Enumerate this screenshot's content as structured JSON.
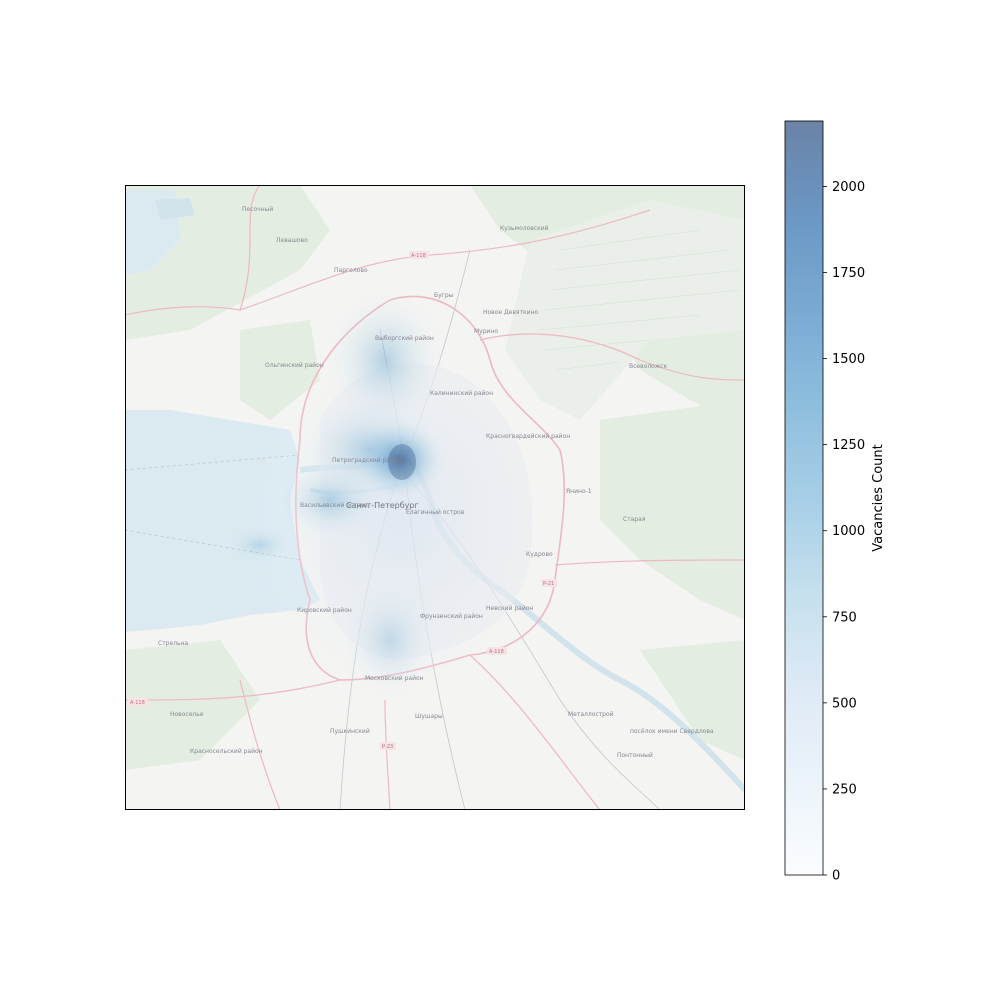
{
  "map": {
    "labels": {
      "city": "Санкт-Петербург",
      "pesochny": "Песочный",
      "levashovo": "Левашово",
      "pargolovo": "Парголово",
      "bugry": "Бугры",
      "kuzmolovsky": "Кузьмоловский",
      "novoe_devyatkino": "Новое Девяткино",
      "murino": "Мурино",
      "vsevolozhsk": "Всеволожск",
      "yanino": "Янино-1",
      "staraya": "Старая",
      "kudrovo": "Кудрово",
      "strelna": "Стрельна",
      "novoselye": "Новоселье",
      "shushary": "Шушары",
      "metallostroy": "Металлострой",
      "sverdlova": "посёлок имени Свердлова",
      "pontonny": "Понтонный",
      "vyborgsky": "Выборгский район",
      "kalininsky": "Калининский район",
      "krasnogvardeisky": "Красногвардейский район",
      "petrogradsky": "Петроградский район",
      "vasileostrovsky": "Васильевский остров",
      "elaginsky": "Елагинный остров",
      "kirovsky": "Кировский район",
      "frunzensky": "Фрунзенский район",
      "nevsky": "Невский район",
      "moskovsky": "Московский район",
      "krasnoselsky": "Красносельский район",
      "pushkinsky": "Пушкинский",
      "olginsky": "Ольгинский район"
    },
    "roads": {
      "a118_north": "А-118",
      "a118_east": "А-118",
      "a118_west": "А-118",
      "r21": "Р-21",
      "r23": "Р-23"
    },
    "tile_colors": {
      "land": "#f2f2ef",
      "water": "#d3e5ee",
      "forest": "#dfeadb",
      "swamp": "#e6ece4",
      "road": "#e9a9b4"
    }
  },
  "heatmap": {
    "colormap": "Blues",
    "alpha": 0.6,
    "peak_value": 2190,
    "hotspots": [
      {
        "name": "center",
        "intensity": 1.0
      },
      {
        "name": "petrogradsky",
        "intensity": 0.7
      },
      {
        "name": "vasileostrovsky",
        "intensity": 0.55
      },
      {
        "name": "north",
        "intensity": 0.45
      },
      {
        "name": "moskovsky",
        "intensity": 0.3
      }
    ]
  },
  "colorbar": {
    "label": "Vacancies Count",
    "ticks": [
      "0",
      "250",
      "500",
      "750",
      "1000",
      "1250",
      "1500",
      "1750",
      "2000"
    ],
    "tick_values": [
      0,
      250,
      500,
      750,
      1000,
      1250,
      1500,
      1750,
      2000
    ],
    "min": 0,
    "max": 2190,
    "colors": [
      "#f7fbff",
      "#deebf7",
      "#c6dbef",
      "#9ecae1",
      "#6baed6",
      "#4292c6",
      "#2171b5",
      "#08519c",
      "#08306b"
    ],
    "alpha": 0.6
  }
}
